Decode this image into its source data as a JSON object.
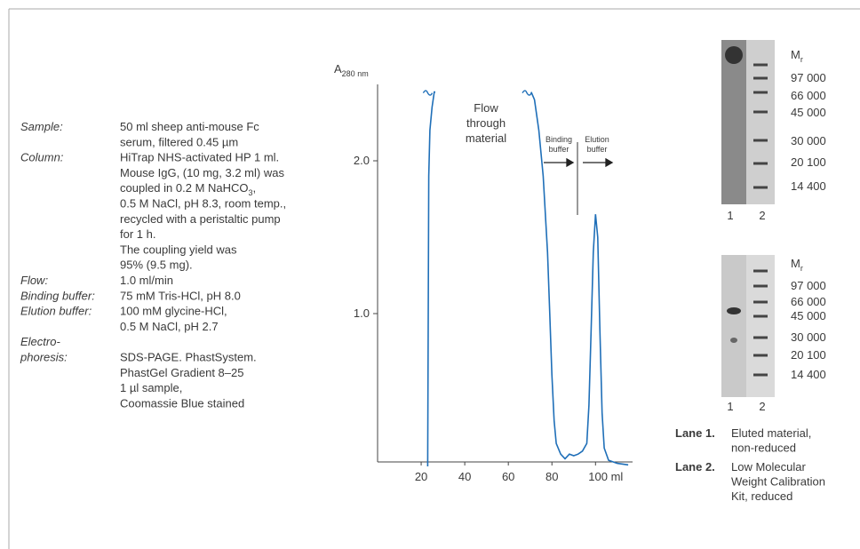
{
  "conditions": [
    {
      "label": [
        "Sample:"
      ],
      "value": [
        "50 ml sheep anti-mouse Fc",
        "serum, filtered 0.45 µm"
      ]
    },
    {
      "label": [
        "Column:"
      ],
      "value": [
        "HiTrap NHS-activated HP 1 ml.",
        "Mouse IgG, (10 mg, 3.2 ml) was",
        {
          "text": "coupled in 0.2 M NaHCO",
          "sub": "3",
          "tail": ","
        },
        "0.5 M NaCl, pH 8.3, room temp.,",
        "recycled with a peristaltic pump",
        "for 1 h.",
        "The coupling yield was",
        "95% (9.5 mg)."
      ]
    },
    {
      "label": [
        "Flow:"
      ],
      "value": [
        "1.0 ml/min"
      ]
    },
    {
      "label": [
        "Binding buffer:"
      ],
      "value": [
        "75 mM Tris-HCl, pH 8.0"
      ]
    },
    {
      "label": [
        "Elution buffer:"
      ],
      "value": [
        "100 mM glycine-HCl,",
        "0.5 M NaCl, pH 2.7"
      ]
    },
    {
      "label": [
        "Electro-",
        "phoresis:"
      ],
      "value": [
        "SDS-PAGE. PhastSystem.",
        "PhastGel Gradient 8–25",
        "1 µl sample,",
        "Coomassie Blue stained"
      ]
    }
  ],
  "chart_data": {
    "type": "line",
    "y_label": "A",
    "y_label_sub": "280 nm",
    "x": [
      23,
      23.5,
      24,
      25,
      26,
      26.5,
      48,
      70.5,
      72,
      74,
      76,
      78,
      79,
      80,
      81,
      82,
      84,
      86,
      88,
      90,
      92,
      94,
      96,
      97,
      98,
      99,
      100,
      101,
      102,
      103,
      104,
      106,
      110,
      115
    ],
    "values": [
      0,
      1.9,
      2.2,
      2.35,
      2.45,
      2.45,
      null,
      2.45,
      2.4,
      2.2,
      1.9,
      1.4,
      1.0,
      0.6,
      0.3,
      0.15,
      0.08,
      0.05,
      0.08,
      0.07,
      0.08,
      0.1,
      0.15,
      0.4,
      0.9,
      1.4,
      1.65,
      1.5,
      0.9,
      0.35,
      0.12,
      0.04,
      0.02,
      0.01
    ],
    "color": "#1f6fb8",
    "xlim": [
      0,
      117
    ],
    "ylim": [
      0,
      2.5
    ],
    "xticks": [
      20,
      40,
      60,
      80,
      {
        "value": 100,
        "label": "100 ml"
      }
    ],
    "yticks": [
      {
        "value": 1,
        "label": "1.0"
      },
      {
        "value": 2,
        "label": "2.0"
      }
    ],
    "annotations": {
      "flow_through": [
        "Flow",
        "through",
        "material"
      ],
      "binding": [
        "Binding",
        "buffer"
      ],
      "elution": [
        "Elution",
        "buffer"
      ]
    }
  },
  "gels": [
    {
      "mr": "M",
      "mr_sub": "r",
      "markers": [
        "97 000",
        "66 000",
        "45 000",
        "30 000",
        "20 100",
        "14 400"
      ],
      "lanes": [
        "1",
        "2"
      ]
    },
    {
      "mr": "M",
      "mr_sub": "r",
      "markers": [
        "97 000",
        "66 000",
        "45 000",
        "30 000",
        "20 100",
        "14 400"
      ],
      "lanes": [
        "1",
        "2"
      ]
    }
  ],
  "lane_legend": [
    {
      "label": "Lane 1.",
      "text": [
        "Eluted material,",
        "non-reduced"
      ]
    },
    {
      "label": "Lane 2.",
      "text": [
        "Low Molecular",
        "Weight Calibration",
        "Kit, reduced"
      ]
    }
  ]
}
